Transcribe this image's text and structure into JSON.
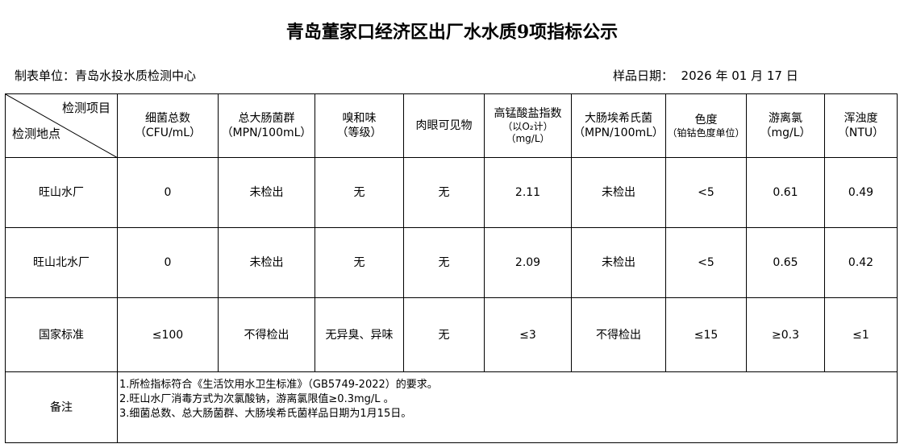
{
  "title": "青岛董家口经济区出厂水水质9项指标公示",
  "unit": "制表单位：青岛水投水质检测中心",
  "date": "样品日期：  2026 年 01 月 17 日",
  "header": {
    "corner_top": "检测项目",
    "corner_bottom": "检测地点",
    "cols": [
      {
        "name": "细菌总数",
        "unit": "（CFU/mL）"
      },
      {
        "name": "总大肠菌群",
        "unit": "（MPN/100mL）"
      },
      {
        "name": "嗅和味",
        "unit": "（等级）"
      },
      {
        "name": "肉眼可见物",
        "unit": ""
      },
      {
        "name": "高锰酸盐指数",
        "unit": "（以O₂计）",
        "unit2": "（mg/L）"
      },
      {
        "name": "大肠埃希氏菌",
        "unit": "（MPN/100mL）"
      },
      {
        "name": "色度",
        "unit": "（铂钴色度单位）"
      },
      {
        "name": "游离氯",
        "unit": "（mg/L）"
      },
      {
        "name": "浑浊度",
        "unit": "（NTU）"
      }
    ]
  },
  "rows": [
    {
      "site": "旺山水厂",
      "values": [
        "0",
        "未检出",
        "无",
        "无",
        "2.11",
        "未检出",
        "<5",
        "0.61",
        "0.49"
      ]
    },
    {
      "site": "旺山北水厂",
      "values": [
        "0",
        "未检出",
        "无",
        "无",
        "2.09",
        "未检出",
        "<5",
        "0.65",
        "0.42"
      ]
    },
    {
      "site": "国家标准",
      "values": [
        "≤100",
        "不得检出",
        "无异臭、异味",
        "无",
        "≤3",
        "不得检出",
        "≤15",
        "≥0.3",
        "≤1"
      ]
    }
  ],
  "notes": {
    "label": "备注",
    "lines": [
      "1.所检指标符合《生活饮用水卫生标准》（GB5749-2022）的要求。",
      "2.旺山水厂消毒方式为次氯酸钠，游离氯限值≥0.3mg/L 。",
      "3.细菌总数、总大肠菌群、大肠埃希氏菌样品日期为1月15日。"
    ]
  }
}
